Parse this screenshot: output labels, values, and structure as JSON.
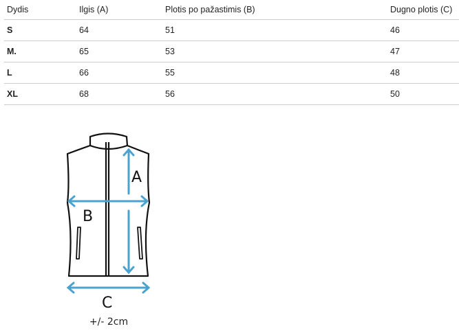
{
  "table": {
    "headers": [
      "Dydis",
      "Ilgis (A)",
      "Plotis po pažastimis (B)",
      "Dugno plotis (C)"
    ],
    "rows": [
      [
        "S",
        "64",
        "51",
        "46"
      ],
      [
        "M.",
        "65",
        "53",
        "47"
      ],
      [
        "L",
        "66",
        "55",
        "48"
      ],
      [
        "XL",
        "68",
        "56",
        "50"
      ]
    ]
  },
  "diagram": {
    "label_a": "A",
    "label_b": "B",
    "label_c": "C",
    "tolerance": "+/- 2cm",
    "arrow_color": "#4aa3cf"
  }
}
